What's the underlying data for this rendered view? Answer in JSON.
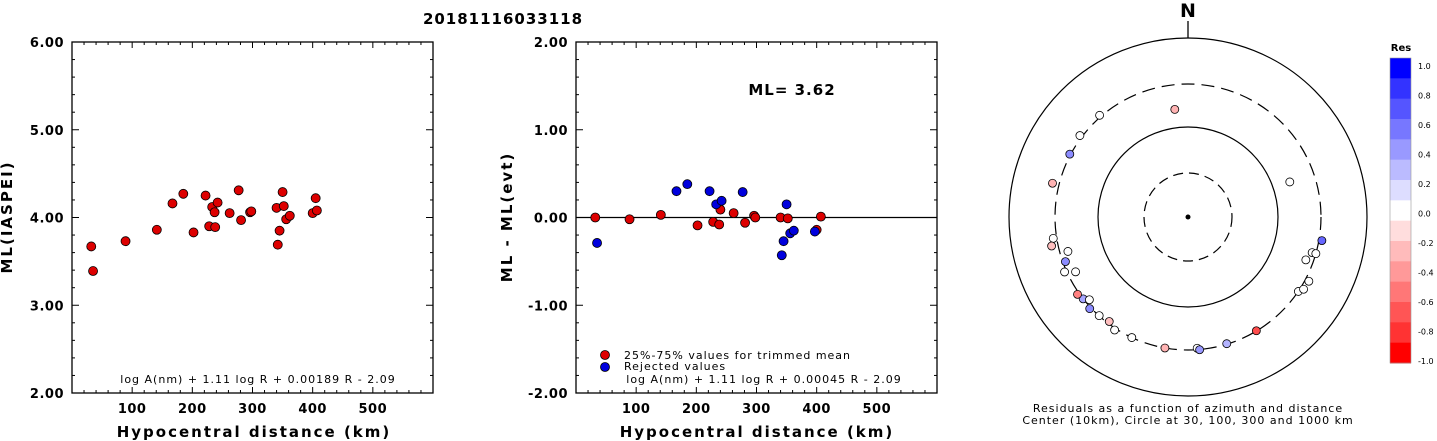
{
  "chart_data": [
    {
      "type": "scatter",
      "event_id": "20181116033118",
      "xlabel": "Hypocentral distance (km)",
      "ylabel": "ML(IASPEI)",
      "xlim": [
        0,
        600
      ],
      "ylim": [
        2.0,
        6.0
      ],
      "xticks": [
        "100",
        "200",
        "300",
        "400",
        "500"
      ],
      "yticks": [
        "2.00",
        "3.00",
        "4.00",
        "5.00",
        "6.00"
      ],
      "formula": "log A(nm) + 1.11 log R + 0.00189 R - 2.09",
      "points": [
        {
          "x": 32,
          "y": 3.67
        },
        {
          "x": 35,
          "y": 3.39
        },
        {
          "x": 89,
          "y": 3.73
        },
        {
          "x": 141,
          "y": 3.86
        },
        {
          "x": 167,
          "y": 4.16
        },
        {
          "x": 185,
          "y": 4.27
        },
        {
          "x": 202,
          "y": 3.83
        },
        {
          "x": 222,
          "y": 4.25
        },
        {
          "x": 228,
          "y": 3.9
        },
        {
          "x": 233,
          "y": 4.12
        },
        {
          "x": 237,
          "y": 4.06
        },
        {
          "x": 238,
          "y": 3.89
        },
        {
          "x": 242,
          "y": 4.17
        },
        {
          "x": 262,
          "y": 4.05
        },
        {
          "x": 277,
          "y": 4.31
        },
        {
          "x": 281,
          "y": 3.97
        },
        {
          "x": 296,
          "y": 4.06
        },
        {
          "x": 298,
          "y": 4.07
        },
        {
          "x": 340,
          "y": 4.11
        },
        {
          "x": 342,
          "y": 3.69
        },
        {
          "x": 345,
          "y": 3.85
        },
        {
          "x": 350,
          "y": 4.29
        },
        {
          "x": 352,
          "y": 4.13
        },
        {
          "x": 356,
          "y": 3.98
        },
        {
          "x": 362,
          "y": 4.02
        },
        {
          "x": 400,
          "y": 4.05
        },
        {
          "x": 405,
          "y": 4.22
        },
        {
          "x": 407,
          "y": 4.08
        }
      ]
    },
    {
      "type": "scatter",
      "xlabel": "Hypocentral distance (km)",
      "ylabel": "ML - ML(evt)",
      "xlim": [
        0,
        600
      ],
      "ylim": [
        -2.0,
        2.0
      ],
      "xticks": [
        "100",
        "200",
        "300",
        "400",
        "500"
      ],
      "yticks": [
        "-2.00",
        "-1.00",
        "0.00",
        "1.00",
        "2.00"
      ],
      "ml_label": "ML= 3.62",
      "legend": {
        "trimmed": "25%-75% values for trimmed mean",
        "rejected": "Rejected values"
      },
      "formula": "log A(nm) + 1.11 log R + 0.00045 R - 2.09",
      "series": [
        {
          "name": "25%-75% values for trimmed mean",
          "color": "#dd0000",
          "points": [
            {
              "x": 32,
              "y": 0.0
            },
            {
              "x": 89,
              "y": -0.02
            },
            {
              "x": 141,
              "y": 0.03
            },
            {
              "x": 202,
              "y": -0.09
            },
            {
              "x": 228,
              "y": -0.05
            },
            {
              "x": 238,
              "y": -0.08
            },
            {
              "x": 240,
              "y": 0.09
            },
            {
              "x": 262,
              "y": 0.05
            },
            {
              "x": 281,
              "y": -0.06
            },
            {
              "x": 296,
              "y": 0.02
            },
            {
              "x": 298,
              "y": 0.0
            },
            {
              "x": 340,
              "y": 0.0
            },
            {
              "x": 352,
              "y": -0.01
            },
            {
              "x": 400,
              "y": -0.14
            },
            {
              "x": 407,
              "y": 0.01
            }
          ]
        },
        {
          "name": "Rejected values",
          "color": "#0000dd",
          "points": [
            {
              "x": 35,
              "y": -0.29
            },
            {
              "x": 167,
              "y": 0.3
            },
            {
              "x": 185,
              "y": 0.38
            },
            {
              "x": 222,
              "y": 0.3
            },
            {
              "x": 233,
              "y": 0.15
            },
            {
              "x": 242,
              "y": 0.19
            },
            {
              "x": 277,
              "y": 0.29
            },
            {
              "x": 342,
              "y": -0.43
            },
            {
              "x": 345,
              "y": -0.27
            },
            {
              "x": 350,
              "y": 0.15
            },
            {
              "x": 356,
              "y": -0.18
            },
            {
              "x": 362,
              "y": -0.15
            },
            {
              "x": 397,
              "y": -0.16
            }
          ]
        }
      ]
    },
    {
      "type": "polar-scatter",
      "north_label": "N",
      "caption_line1": "Residuals as a function of azimuth and distance",
      "caption_line2": "Center (10km), Circle at 30, 100, 300 and 1000 km",
      "colorbar": {
        "title": "Res",
        "ticks": [
          "1.0",
          "0.8",
          "0.6",
          "0.4",
          "0.2",
          "0.0",
          "-0.2",
          "-0.4",
          "-0.6",
          "-0.8",
          "-1.0"
        ],
        "colors_top_to_bottom": [
          "#0000ff",
          "#3333ff",
          "#5555ff",
          "#7777ff",
          "#9999ff",
          "#bbbbff",
          "#ddddff",
          "#ffffff",
          "#ffdddd",
          "#ffbbbb",
          "#ff9999",
          "#ff7777",
          "#ff5555",
          "#ff3333",
          "#ff0000"
        ]
      },
      "stations": [
        {
          "az": 353,
          "dist": 160,
          "res": -0.3
        },
        {
          "az": 71,
          "dist": 157,
          "res": 0.0
        },
        {
          "az": 319,
          "dist": 314,
          "res": 0.0
        },
        {
          "az": 307,
          "dist": 319,
          "res": 0.0
        },
        {
          "az": 298,
          "dist": 307,
          "res": 0.45
        },
        {
          "az": 284,
          "dist": 357,
          "res": -0.3
        },
        {
          "az": 261,
          "dist": 328,
          "res": 0.0
        },
        {
          "az": 258,
          "dist": 355,
          "res": -0.25
        },
        {
          "az": 250,
          "dist": 281,
          "res": 0.45
        },
        {
          "az": 254,
          "dist": 244,
          "res": 0.0
        },
        {
          "az": 246,
          "dist": 317,
          "res": 0.0
        },
        {
          "az": 244,
          "dist": 245,
          "res": 0.0
        },
        {
          "az": 232,
          "dist": 300,
          "res": 0.35
        },
        {
          "az": 235,
          "dist": 315,
          "res": -0.5
        },
        {
          "az": 227,
          "dist": 311,
          "res": 0.45
        },
        {
          "az": 230,
          "dist": 269,
          "res": 0.0
        },
        {
          "az": 222,
          "dist": 298,
          "res": 0.0
        },
        {
          "az": 217,
          "dist": 284,
          "res": -0.25
        },
        {
          "az": 213,
          "dist": 314,
          "res": 0.0
        },
        {
          "az": 205,
          "dist": 300,
          "res": 0.0
        },
        {
          "az": 190,
          "dist": 300,
          "res": -0.3
        },
        {
          "az": 176,
          "dist": 289,
          "res": 0.0
        },
        {
          "az": 175,
          "dist": 302,
          "res": 0.4
        },
        {
          "az": 163,
          "dist": 296,
          "res": 0.3
        },
        {
          "az": 149,
          "dist": 298,
          "res": -0.7
        },
        {
          "az": 124,
          "dist": 301,
          "res": 0.0
        },
        {
          "az": 122,
          "dist": 327,
          "res": 0.0
        },
        {
          "az": 118,
          "dist": 332,
          "res": 0.0
        },
        {
          "az": 110,
          "dist": 247,
          "res": 0.0
        },
        {
          "az": 106,
          "dist": 272,
          "res": 0.0
        },
        {
          "az": 100,
          "dist": 324,
          "res": 0.6
        },
        {
          "az": 106,
          "dist": 300,
          "res": 0.0
        }
      ]
    }
  ]
}
